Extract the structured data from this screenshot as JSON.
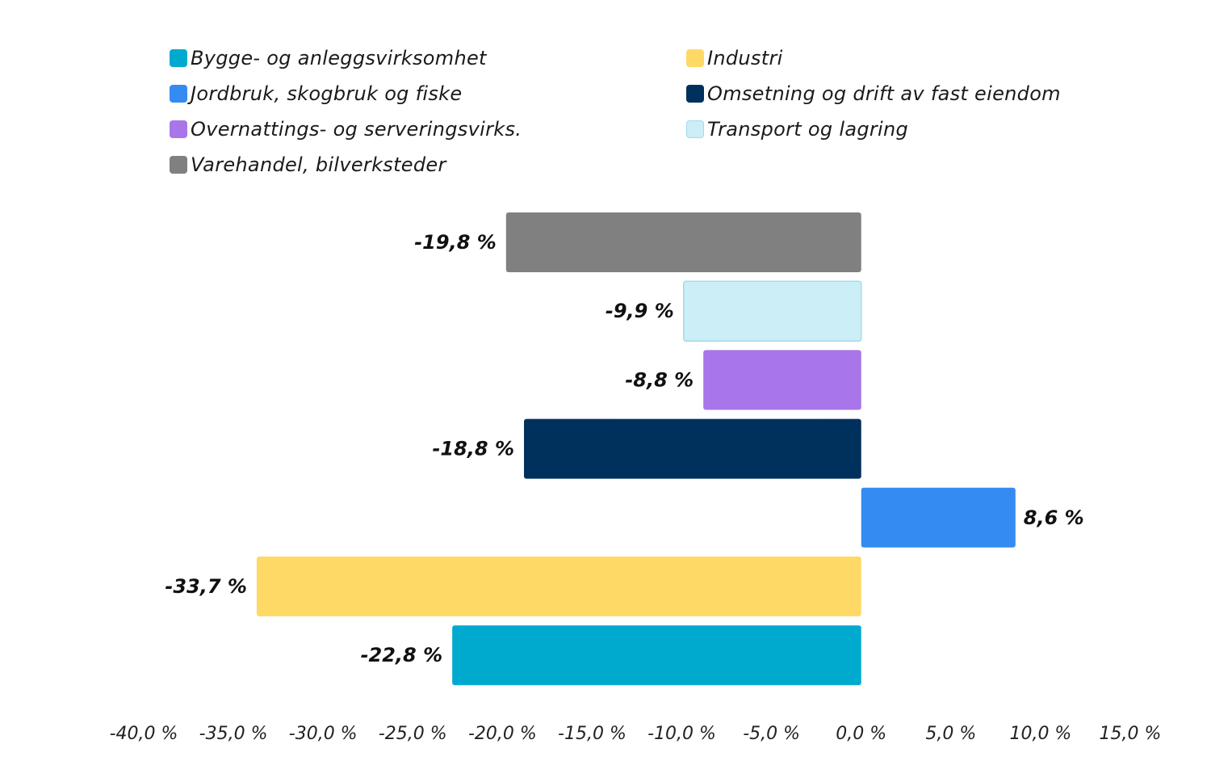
{
  "chart_data": {
    "type": "bar",
    "orientation": "horizontal",
    "title": "",
    "xlabel": "",
    "ylabel": "",
    "xlim": [
      -40,
      15
    ],
    "xticks": [
      -40,
      -35,
      -30,
      -25,
      -20,
      -15,
      -10,
      -5,
      0,
      5,
      10,
      15
    ],
    "xtick_labels": [
      "-40,0 %",
      "-35,0 %",
      "-30,0 %",
      "-25,0 %",
      "-20,0 %",
      "-15,0 %",
      "-10,0 %",
      "-5,0 %",
      "0,0 %",
      "5,0 %",
      "10,0 %",
      "15,0 %"
    ],
    "grid": false,
    "legend_position": "top",
    "legend": [
      {
        "label": "Bygge- og anleggsvirksomhet",
        "color": "#00AACF"
      },
      {
        "label": "Industri",
        "color": "#FFD966"
      },
      {
        "label": "Jordbruk, skogbruk og fiske",
        "color": "#348CF2"
      },
      {
        "label": "Omsetning og drift av fast eiendom",
        "color": "#00305C"
      },
      {
        "label": "Overnattings- og serveringsvirks.",
        "color": "#A876E8"
      },
      {
        "label": "Transport og lagring",
        "color": "#CCEEF7"
      },
      {
        "label": "Varehandel, bilverksteder",
        "color": "#808080"
      }
    ],
    "bars_top_to_bottom": [
      {
        "category": "Varehandel, bilverksteder",
        "value": -19.8,
        "label": "-19,8 %",
        "color": "#808080"
      },
      {
        "category": "Transport og lagring",
        "value": -9.9,
        "label": "-9,9 %",
        "color": "#CCEEF7"
      },
      {
        "category": "Overnattings- og serveringsvirks.",
        "value": -8.8,
        "label": "-8,8 %",
        "color": "#A876E8"
      },
      {
        "category": "Omsetning og drift av fast eiendom",
        "value": -18.8,
        "label": "-18,8 %",
        "color": "#00305C"
      },
      {
        "category": "Jordbruk, skogbruk og fiske",
        "value": 8.6,
        "label": "8,6 %",
        "color": "#348CF2"
      },
      {
        "category": "Industri",
        "value": -33.7,
        "label": "-33,7 %",
        "color": "#FFD966"
      },
      {
        "category": "Bygge- og anleggsvirksomhet",
        "value": -22.8,
        "label": "-22,8 %",
        "color": "#00AACF"
      }
    ]
  }
}
